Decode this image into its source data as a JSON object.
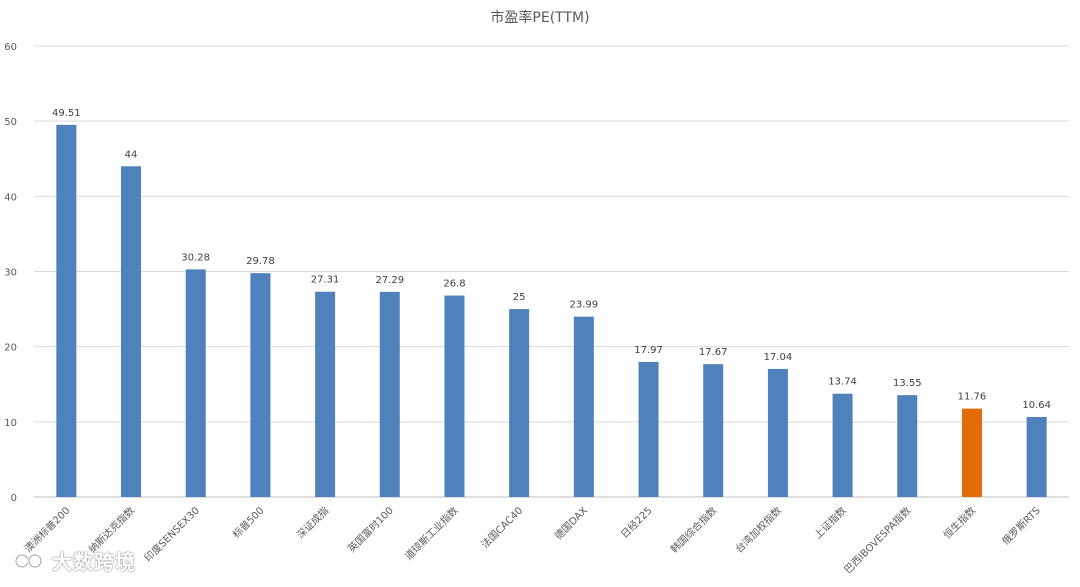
{
  "chart_data": {
    "type": "bar",
    "title": "市盈率PE(TTM)",
    "xlabel": "",
    "ylabel": "",
    "ylim": [
      0,
      60
    ],
    "yticks": [
      0,
      10,
      20,
      30,
      40,
      50,
      60
    ],
    "grid": true,
    "categories": [
      "澳洲标普200",
      "纳斯达克指数",
      "印度SENSEX30",
      "标普500",
      "深证成指",
      "英国富时100",
      "道琼斯工业指数",
      "法国CAC40",
      "德国DAX",
      "日经225",
      "韩国综合指数",
      "台湾加权指数",
      "上证指数",
      "巴西IBOVESPA指数",
      "恒生指数",
      "俄罗斯RTS"
    ],
    "values": [
      49.51,
      44,
      30.28,
      29.78,
      27.31,
      27.29,
      26.8,
      25,
      23.99,
      17.97,
      17.67,
      17.04,
      13.74,
      13.55,
      11.76,
      10.64
    ],
    "data_labels": [
      "49.51",
      "44",
      "30.28",
      "29.78",
      "27.31",
      "27.29",
      "26.8",
      "25",
      "23.99",
      "17.97",
      "17.67",
      "17.04",
      "13.74",
      "13.55",
      "11.76",
      "10.64"
    ],
    "highlight_category": "恒生指数",
    "colors": {
      "bar": "#4f81bd",
      "highlight": "#e36c09",
      "grid": "#d9d9d9",
      "axis": "#bfbfbf",
      "text": "#404040"
    }
  },
  "watermark": {
    "text": "大数跨境",
    "icon": "brand-logo-icon"
  }
}
